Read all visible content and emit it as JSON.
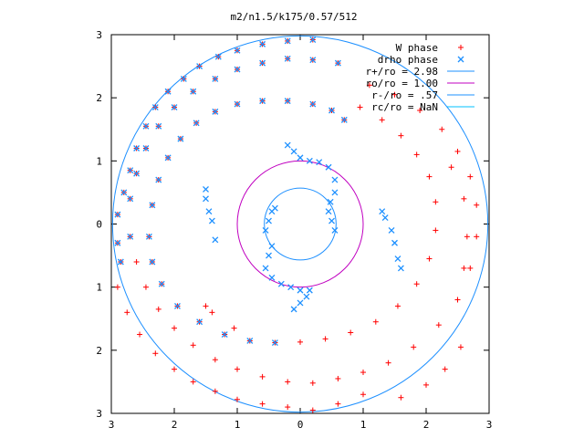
{
  "chart_data": {
    "type": "scatter",
    "title": "m2/n1.5/k175/0.57/512",
    "xlabel": "",
    "ylabel": "",
    "xlim": [
      -3,
      3
    ],
    "ylim": [
      -3,
      3
    ],
    "grid": false,
    "legend_placement": "top-right",
    "x_ticks": [
      -3,
      -2,
      -1,
      0,
      1,
      2,
      3
    ],
    "y_ticks": [
      3,
      2,
      1,
      0,
      -1,
      -2,
      -3
    ],
    "x_tick_labels": [
      "3",
      "2",
      "1",
      "0",
      "1",
      "2",
      "3"
    ],
    "y_tick_labels": [
      "3",
      "2",
      "1",
      "0",
      "1",
      "2",
      "3"
    ],
    "legend": [
      {
        "label": "W phase",
        "marker": "plus",
        "color": "#ff0000"
      },
      {
        "label": "drho phase",
        "marker": "cross",
        "color": "#1e90ff"
      },
      {
        "label": "r+/ro = 2.98",
        "line": true,
        "color": "#1e90ff"
      },
      {
        "label": "ro/ro = 1.00",
        "line": true,
        "color": "#c000c0"
      },
      {
        "label": "r-/ro = .57",
        "line": true,
        "color": "#1e90ff"
      },
      {
        "label": "rc/ro = NaN",
        "line": true,
        "color": "#00c0ff"
      }
    ],
    "circles": [
      {
        "name": "r+/ro",
        "radius": 2.98,
        "color": "#1e90ff"
      },
      {
        "name": "ro/ro",
        "radius": 1.0,
        "color": "#c000c0"
      },
      {
        "name": "r-/ro",
        "radius": 0.57,
        "color": "#1e90ff"
      }
    ],
    "series": [
      {
        "name": "W phase",
        "marker": "plus",
        "color": "#ff0000",
        "points": [
          [
            -2.9,
            0.15
          ],
          [
            -2.9,
            -0.3
          ],
          [
            -2.85,
            -0.6
          ],
          [
            -2.8,
            0.5
          ],
          [
            -2.7,
            0.85
          ],
          [
            -2.6,
            1.2
          ],
          [
            -2.45,
            1.55
          ],
          [
            -2.3,
            1.85
          ],
          [
            -2.1,
            2.1
          ],
          [
            -1.85,
            2.3
          ],
          [
            -1.6,
            2.5
          ],
          [
            -1.3,
            2.65
          ],
          [
            -1.0,
            2.75
          ],
          [
            -0.6,
            2.85
          ],
          [
            -0.2,
            2.9
          ],
          [
            0.2,
            2.92
          ],
          [
            -2.9,
            -1.0
          ],
          [
            -2.75,
            -1.4
          ],
          [
            -2.55,
            -1.75
          ],
          [
            -2.3,
            -2.05
          ],
          [
            -2.0,
            -2.3
          ],
          [
            -1.7,
            -2.5
          ],
          [
            -1.35,
            -2.65
          ],
          [
            -1.0,
            -2.78
          ],
          [
            -0.6,
            -2.85
          ],
          [
            -0.2,
            -2.9
          ],
          [
            0.2,
            -2.95
          ],
          [
            0.6,
            -2.85
          ],
          [
            1.0,
            -2.7
          ],
          [
            -2.7,
            -0.2
          ],
          [
            -2.7,
            0.4
          ],
          [
            -2.6,
            0.8
          ],
          [
            -2.45,
            1.2
          ],
          [
            -2.25,
            1.55
          ],
          [
            -2.0,
            1.85
          ],
          [
            -1.7,
            2.1
          ],
          [
            -1.35,
            2.3
          ],
          [
            -1.0,
            2.45
          ],
          [
            -0.6,
            2.55
          ],
          [
            -0.2,
            2.62
          ],
          [
            0.2,
            2.6
          ],
          [
            0.6,
            2.55
          ],
          [
            -2.6,
            -0.6
          ],
          [
            -2.45,
            -1.0
          ],
          [
            -2.25,
            -1.35
          ],
          [
            -2.0,
            -1.65
          ],
          [
            -1.7,
            -1.92
          ],
          [
            -1.35,
            -2.15
          ],
          [
            -1.0,
            -2.3
          ],
          [
            -0.6,
            -2.42
          ],
          [
            -0.2,
            -2.5
          ],
          [
            0.2,
            -2.52
          ],
          [
            0.6,
            -2.45
          ],
          [
            1.0,
            -2.35
          ],
          [
            1.4,
            -2.2
          ],
          [
            1.8,
            -1.95
          ],
          [
            2.2,
            -1.6
          ],
          [
            2.5,
            -1.2
          ],
          [
            2.7,
            -0.7
          ],
          [
            2.8,
            -0.2
          ],
          [
            2.8,
            0.3
          ],
          [
            2.7,
            0.75
          ],
          [
            2.5,
            1.15
          ],
          [
            2.25,
            1.5
          ],
          [
            1.9,
            1.8
          ],
          [
            1.5,
            2.05
          ],
          [
            1.1,
            2.2
          ],
          [
            -2.4,
            -0.2
          ],
          [
            -2.35,
            0.3
          ],
          [
            -2.25,
            0.7
          ],
          [
            -2.1,
            1.05
          ],
          [
            -1.9,
            1.35
          ],
          [
            -1.65,
            1.6
          ],
          [
            -1.35,
            1.78
          ],
          [
            -1.0,
            1.9
          ],
          [
            -0.6,
            1.95
          ],
          [
            -0.2,
            1.95
          ],
          [
            0.2,
            1.9
          ],
          [
            0.5,
            1.8
          ],
          [
            0.7,
            1.65
          ],
          [
            -2.35,
            -0.6
          ],
          [
            -2.2,
            -0.95
          ],
          [
            -1.95,
            -1.3
          ],
          [
            -1.6,
            -1.55
          ],
          [
            -1.2,
            -1.75
          ],
          [
            -0.8,
            -1.85
          ],
          [
            -0.4,
            -1.88
          ],
          [
            0.0,
            -1.87
          ],
          [
            0.4,
            -1.82
          ],
          [
            0.8,
            -1.72
          ],
          [
            1.2,
            -1.55
          ],
          [
            1.55,
            -1.3
          ],
          [
            1.85,
            -0.95
          ],
          [
            2.05,
            -0.55
          ],
          [
            2.15,
            -0.1
          ],
          [
            2.15,
            0.35
          ],
          [
            2.05,
            0.75
          ],
          [
            1.85,
            1.1
          ],
          [
            1.6,
            1.4
          ],
          [
            1.3,
            1.65
          ],
          [
            0.95,
            1.85
          ],
          [
            2.3,
            -2.3
          ],
          [
            2.0,
            -2.55
          ],
          [
            1.6,
            -2.75
          ],
          [
            2.55,
            -1.95
          ],
          [
            2.4,
            0.9
          ],
          [
            2.6,
            0.4
          ],
          [
            2.65,
            -0.2
          ],
          [
            2.6,
            -0.7
          ],
          [
            -1.4,
            -1.4
          ],
          [
            -1.5,
            -1.3
          ],
          [
            -1.05,
            -1.65
          ]
        ]
      },
      {
        "name": "drho phase",
        "marker": "cross",
        "color": "#1e90ff",
        "points": [
          [
            -2.9,
            0.15
          ],
          [
            -2.9,
            -0.3
          ],
          [
            -2.85,
            -0.6
          ],
          [
            -2.8,
            0.5
          ],
          [
            -2.7,
            0.85
          ],
          [
            -2.6,
            1.2
          ],
          [
            -2.45,
            1.55
          ],
          [
            -2.3,
            1.85
          ],
          [
            -2.1,
            2.1
          ],
          [
            -1.85,
            2.3
          ],
          [
            -1.6,
            2.5
          ],
          [
            -1.3,
            2.65
          ],
          [
            -1.0,
            2.75
          ],
          [
            -0.6,
            2.85
          ],
          [
            -0.2,
            2.9
          ],
          [
            0.2,
            2.92
          ],
          [
            -2.7,
            -0.2
          ],
          [
            -2.7,
            0.4
          ],
          [
            -2.6,
            0.8
          ],
          [
            -2.45,
            1.2
          ],
          [
            -2.25,
            1.55
          ],
          [
            -2.0,
            1.85
          ],
          [
            -1.7,
            2.1
          ],
          [
            -1.35,
            2.3
          ],
          [
            -1.0,
            2.45
          ],
          [
            -0.6,
            2.55
          ],
          [
            -0.2,
            2.62
          ],
          [
            0.2,
            2.6
          ],
          [
            0.6,
            2.55
          ],
          [
            -2.4,
            -0.2
          ],
          [
            -2.35,
            0.3
          ],
          [
            -2.25,
            0.7
          ],
          [
            -2.1,
            1.05
          ],
          [
            -1.9,
            1.35
          ],
          [
            -1.65,
            1.6
          ],
          [
            -1.35,
            1.78
          ],
          [
            -1.0,
            1.9
          ],
          [
            -0.6,
            1.95
          ],
          [
            -0.2,
            1.95
          ],
          [
            0.2,
            1.9
          ],
          [
            0.5,
            1.8
          ],
          [
            0.7,
            1.65
          ],
          [
            -2.35,
            -0.6
          ],
          [
            -2.2,
            -0.95
          ],
          [
            -1.95,
            -1.3
          ],
          [
            -1.6,
            -1.55
          ],
          [
            -1.2,
            -1.75
          ],
          [
            -0.8,
            -1.85
          ],
          [
            -0.4,
            -1.88
          ],
          [
            -0.2,
            1.25
          ],
          [
            -0.1,
            1.15
          ],
          [
            0.0,
            1.05
          ],
          [
            0.15,
            1.0
          ],
          [
            0.3,
            0.98
          ],
          [
            0.45,
            0.9
          ],
          [
            0.55,
            0.7
          ],
          [
            0.55,
            0.5
          ],
          [
            0.48,
            0.35
          ],
          [
            0.45,
            0.2
          ],
          [
            0.5,
            0.05
          ],
          [
            0.55,
            -0.1
          ],
          [
            -0.55,
            -0.1
          ],
          [
            -0.5,
            0.05
          ],
          [
            -0.45,
            0.2
          ],
          [
            -0.4,
            0.25
          ],
          [
            -0.45,
            -0.35
          ],
          [
            -0.5,
            -0.5
          ],
          [
            -0.55,
            -0.7
          ],
          [
            -0.45,
            -0.85
          ],
          [
            -0.3,
            -0.95
          ],
          [
            -0.15,
            -1.0
          ],
          [
            0.0,
            -1.05
          ],
          [
            0.15,
            -1.05
          ],
          [
            0.1,
            -1.15
          ],
          [
            0.0,
            -1.25
          ],
          [
            -0.1,
            -1.35
          ],
          [
            -1.5,
            0.55
          ],
          [
            -1.5,
            0.4
          ],
          [
            -1.45,
            0.2
          ],
          [
            -1.4,
            0.05
          ],
          [
            -1.35,
            -0.25
          ],
          [
            1.5,
            -0.3
          ],
          [
            1.45,
            -0.1
          ],
          [
            1.35,
            0.1
          ],
          [
            1.3,
            0.2
          ],
          [
            1.55,
            -0.55
          ],
          [
            1.6,
            -0.7
          ]
        ]
      }
    ]
  }
}
